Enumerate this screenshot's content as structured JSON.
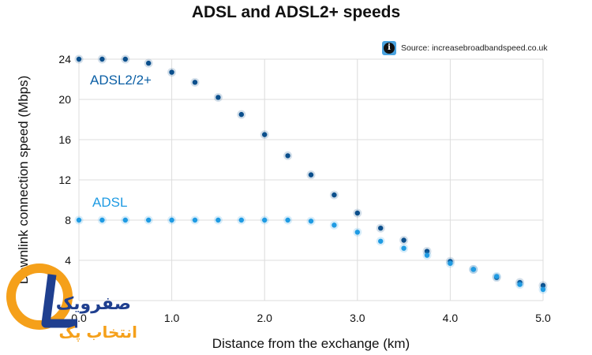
{
  "title": "ADSL and ADSL2+ speeds",
  "source": {
    "icon": "info-icon",
    "text": "Source: increasebroadbandspeed.co.uk"
  },
  "watermark": {
    "logo_text": "OL",
    "line1": "صفرویک",
    "line2": "انتخاب پک",
    "colors": [
      "#f5a01a",
      "#1f3f8f"
    ]
  },
  "chart_data": {
    "type": "scatter",
    "title": "ADSL and ADSL2+ speeds",
    "xlabel": "Distance from the exchange (km)",
    "ylabel": "Downlink connection speed (Mbps)",
    "xlim": [
      0,
      5
    ],
    "ylim": [
      0,
      24
    ],
    "xticks": [
      "0.0",
      "1.0",
      "2.0",
      "3.0",
      "4.0",
      "5.0"
    ],
    "yticks": [
      "0",
      "4",
      "8",
      "12",
      "16",
      "20",
      "24"
    ],
    "grid": true,
    "series": [
      {
        "name": "ADSL2/2+",
        "color": "#0b4f8c",
        "x": [
          0,
          0.25,
          0.5,
          0.75,
          1.0,
          1.25,
          1.5,
          1.75,
          2.0,
          2.25,
          2.5,
          2.75,
          3.0,
          3.25,
          3.5,
          3.75,
          4.0,
          4.25,
          4.5,
          4.75,
          5.0
        ],
        "y": [
          24,
          24,
          24,
          23.6,
          22.7,
          21.7,
          20.2,
          18.5,
          16.5,
          14.4,
          12.5,
          10.5,
          8.7,
          7.2,
          6.0,
          4.9,
          3.9,
          3.1,
          2.3,
          1.8,
          1.5
        ]
      },
      {
        "name": "ADSL",
        "color": "#1f9be3",
        "x": [
          0,
          0.25,
          0.5,
          0.75,
          1.0,
          1.25,
          1.5,
          1.75,
          2.0,
          2.25,
          2.5,
          2.75,
          3.0,
          3.25,
          3.5,
          3.75,
          4.0,
          4.25,
          4.5,
          4.75,
          5.0
        ],
        "y": [
          8,
          8,
          8,
          8,
          8,
          8,
          8,
          8,
          8,
          8,
          7.9,
          7.5,
          6.8,
          5.9,
          5.2,
          4.5,
          3.7,
          3.1,
          2.4,
          1.6,
          1.1
        ]
      }
    ]
  }
}
